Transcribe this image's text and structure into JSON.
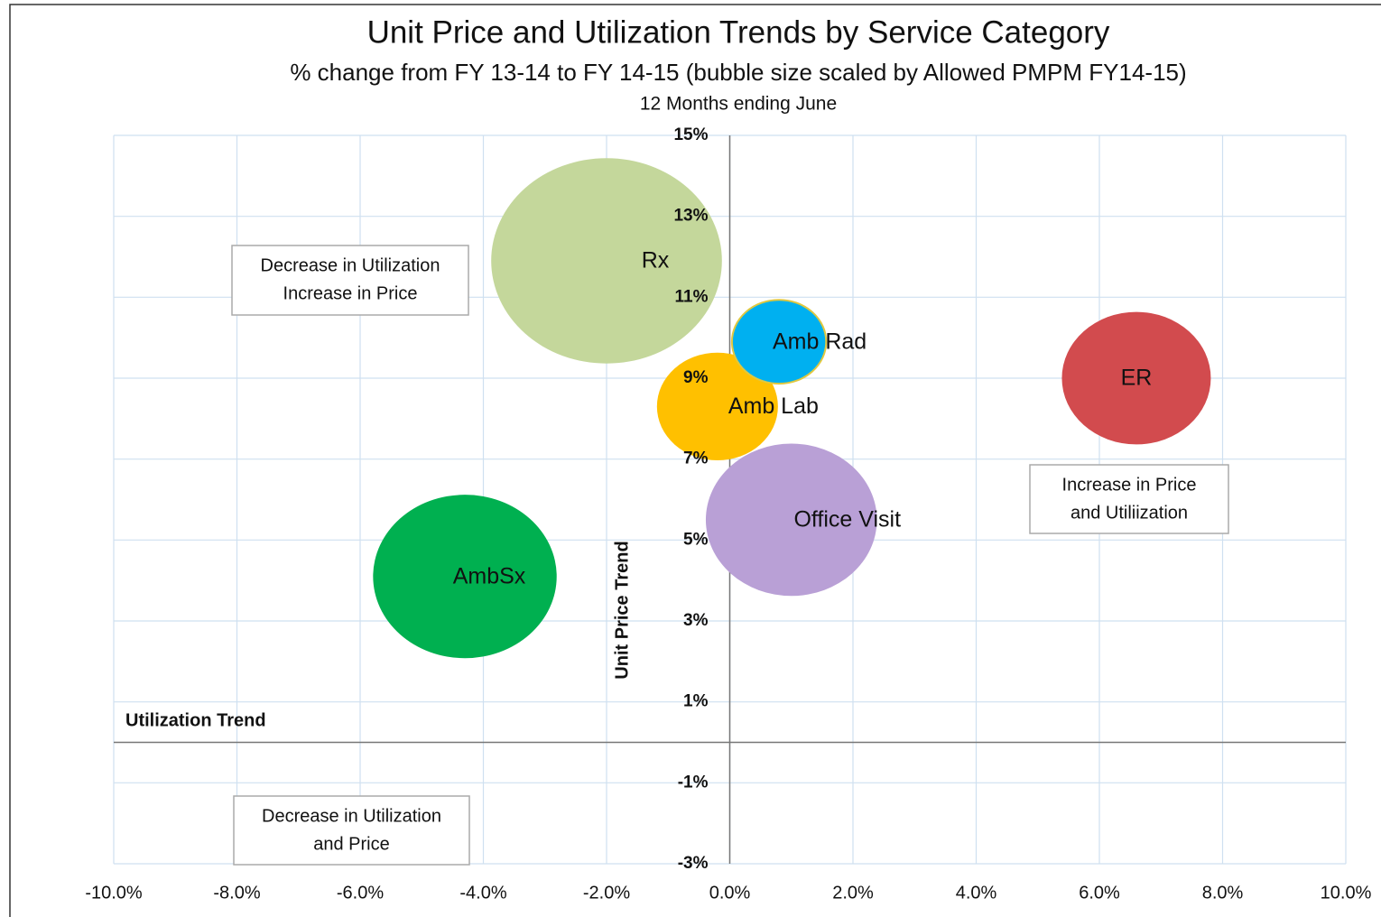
{
  "chart_data": {
    "type": "bubble",
    "title": "Unit Price and Utilization Trends by Service Category",
    "subtitle": "% change from FY 13-14 to FY 14-15 (bubble size scaled by Allowed PMPM FY14-15)",
    "subtitle2": "12 Months ending June",
    "x_label": "Utilization Trend",
    "y_label": "Unit Price Trend",
    "series": [
      {
        "name": "Rx",
        "color": "#c4d79b",
        "x": -2.0,
        "y": 11.9,
        "size": 60
      },
      {
        "name": "AmbSx",
        "color": "#00b050",
        "x": -4.3,
        "y": 4.1,
        "size": 38
      },
      {
        "name": "ER",
        "color": "#d24b4e",
        "x": 6.6,
        "y": 9.0,
        "size": 25
      },
      {
        "name": "Office Visit",
        "color": "#b9a0d6",
        "x": 1.0,
        "y": 5.5,
        "size": 33
      },
      {
        "name": "Amb Lab",
        "color": "#ffc000",
        "x": -0.2,
        "y": 8.3,
        "size": 16.5
      },
      {
        "name": "Amb Rad",
        "color": "#00b0f0",
        "x": 0.8,
        "y": 9.9,
        "size": 10
      }
    ],
    "xlim": [
      -10,
      10
    ],
    "xticks": [
      {
        "value": -10,
        "label": "-10.0%"
      },
      {
        "value": -8,
        "label": "-8.0%"
      },
      {
        "value": -6,
        "label": "-6.0%"
      },
      {
        "value": -4,
        "label": "-4.0%"
      },
      {
        "value": -2,
        "label": "-2.0%"
      },
      {
        "value": 0,
        "label": "0.0%"
      },
      {
        "value": 2,
        "label": "2.0%"
      },
      {
        "value": 4,
        "label": "4.0%"
      },
      {
        "value": 6,
        "label": "6.0%"
      },
      {
        "value": 8,
        "label": "8.0%"
      },
      {
        "value": 10,
        "label": "10.0%"
      }
    ],
    "ylim": [
      -3,
      15
    ],
    "yticks": [
      {
        "value": -3,
        "label": "-3%"
      },
      {
        "value": -1,
        "label": "-1%"
      },
      {
        "value": 1,
        "label": "1%"
      },
      {
        "value": 3,
        "label": "3%"
      },
      {
        "value": 5,
        "label": "5%"
      },
      {
        "value": 7,
        "label": "7%"
      },
      {
        "value": 9,
        "label": "9%"
      },
      {
        "value": 11,
        "label": "11%"
      },
      {
        "value": 13,
        "label": "13%"
      },
      {
        "value": 15,
        "label": "15%"
      }
    ],
    "grid": true,
    "annotations": [
      {
        "lines": [
          "Decrease in Utilization",
          "Increase in Price"
        ]
      },
      {
        "lines": [
          "Increase in Price",
          "and Utiliization"
        ]
      },
      {
        "lines": [
          "Decrease in Utilization",
          "and Price"
        ]
      }
    ]
  }
}
